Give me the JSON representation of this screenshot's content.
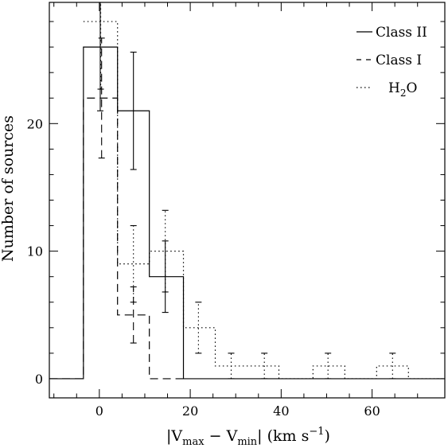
{
  "chart_data": {
    "type": "histogram",
    "title": "",
    "xlabel": {
      "prefix": "|V",
      "sub1": "max",
      "mid": " − V",
      "sub2": "min",
      "suffix": "| (km s",
      "sup": "−1",
      "end": ")"
    },
    "ylabel": "Number of sources",
    "xlim": [
      -11,
      76
    ],
    "ylim": [
      -1.5,
      29.5
    ],
    "x_ticks": [
      0,
      20,
      40,
      60
    ],
    "x_tick_labels": [
      "0",
      "20",
      "40",
      "60"
    ],
    "y_ticks": [
      0,
      10,
      20
    ],
    "y_tick_labels": [
      "0",
      "10",
      "20"
    ],
    "legend_position": "top-right",
    "series": [
      {
        "name": "Class II",
        "style": "solid",
        "bins": [
          {
            "x0": -11,
            "x1": -3.5,
            "value": 0
          },
          {
            "x0": -3.5,
            "x1": 4,
            "value": 26
          },
          {
            "x0": 4,
            "x1": 11,
            "value": 21
          },
          {
            "x0": 11,
            "x1": 18.5,
            "value": 8
          },
          {
            "x0": 18.5,
            "x1": 76,
            "value": 0
          }
        ],
        "error_bars": [
          {
            "x": 0.2,
            "low": 21,
            "high": 30
          },
          {
            "x": 7.5,
            "low": 16.4,
            "high": 25.6
          },
          {
            "x": 14.5,
            "low": 5.2,
            "high": 10.8
          }
        ]
      },
      {
        "name": "Class I",
        "style": "dashed",
        "bins": [
          {
            "x0": -11,
            "x1": -3.5,
            "value": 0
          },
          {
            "x0": -3.5,
            "x1": 0.5,
            "value": 22
          },
          {
            "x0": 0.5,
            "x1": 4,
            "value": 22
          },
          {
            "x0": 4,
            "x1": 7.5,
            "value": 5
          },
          {
            "x0": 7.5,
            "x1": 11,
            "value": 5
          },
          {
            "x0": 11,
            "x1": 18.5,
            "value": 0
          }
        ],
        "error_bars": [
          {
            "x": 0.5,
            "low": 17.3,
            "high": 26.7
          },
          {
            "x": 7.5,
            "low": 2.8,
            "high": 7.2
          }
        ]
      },
      {
        "name": "H2O",
        "label_main": "H",
        "label_sub": "2",
        "label_end": "O",
        "style": "dotted",
        "bins": [
          {
            "x0": -3.5,
            "x1": 4,
            "value": 28
          },
          {
            "x0": 4,
            "x1": 11,
            "value": 9
          },
          {
            "x0": 11,
            "x1": 18.5,
            "value": 10
          },
          {
            "x0": 18.5,
            "x1": 25.5,
            "value": 4
          },
          {
            "x0": 25.5,
            "x1": 39.5,
            "value": 1
          },
          {
            "x0": 39.5,
            "x1": 47,
            "value": 0
          },
          {
            "x0": 47,
            "x1": 54,
            "value": 1
          },
          {
            "x0": 54,
            "x1": 61,
            "value": 0
          },
          {
            "x0": 61,
            "x1": 68,
            "value": 1
          },
          {
            "x0": 68,
            "x1": 76,
            "value": 0
          }
        ],
        "error_bars": [
          {
            "x": 0.3,
            "low": 22.7,
            "high": 33.3
          },
          {
            "x": 7.5,
            "low": 6,
            "high": 12
          },
          {
            "x": 14.5,
            "low": 6.8,
            "high": 13.2
          },
          {
            "x": 21.8,
            "low": 2,
            "high": 6
          },
          {
            "x": 29,
            "low": 0,
            "high": 2
          },
          {
            "x": 36.3,
            "low": 0,
            "high": 2
          },
          {
            "x": 50.3,
            "low": 0,
            "high": 2
          },
          {
            "x": 64.5,
            "low": 0,
            "high": 2
          }
        ]
      }
    ]
  }
}
